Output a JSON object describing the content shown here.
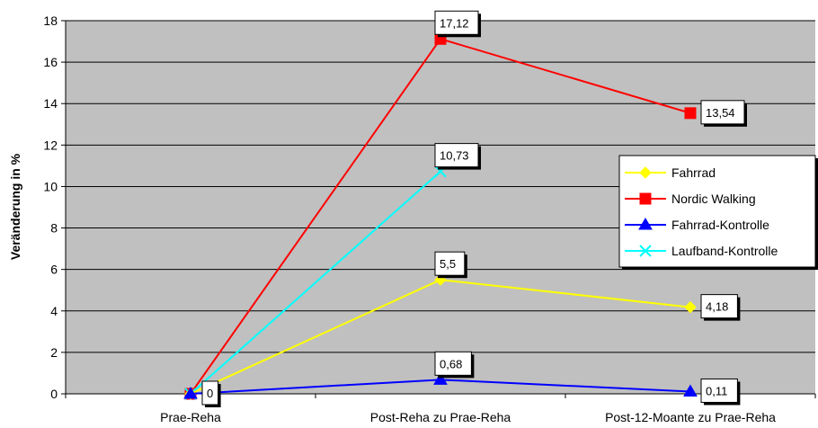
{
  "chart_data": {
    "type": "line",
    "title": "",
    "xlabel": "",
    "ylabel": "Veränderung in %",
    "ylim": [
      0,
      18
    ],
    "yticks": [
      0,
      2,
      4,
      6,
      8,
      10,
      12,
      14,
      16,
      18
    ],
    "categories": [
      "Prae-Reha",
      "Post-Reha zu Prae-Reha",
      "Post-12-Moante zu Prae-Reha"
    ],
    "grid": true,
    "legend_position": "right",
    "plot_background": "#c0c0c0",
    "series": [
      {
        "name": "Fahrrad",
        "color": "#ffff00",
        "marker": "diamond",
        "values": [
          0,
          5.5,
          4.18
        ],
        "labels": [
          "",
          "5,5",
          "4,18"
        ]
      },
      {
        "name": "Nordic Walking",
        "color": "#ff0000",
        "marker": "square",
        "values": [
          0,
          17.12,
          13.54
        ],
        "labels": [
          "",
          "17,12",
          "13,54"
        ]
      },
      {
        "name": "Fahrrad-Kontrolle",
        "color": "#0000ff",
        "marker": "triangle",
        "values": [
          0,
          0.68,
          0.11
        ],
        "labels": [
          "0",
          "0,68",
          "0,11"
        ]
      },
      {
        "name": "Laufband-Kontrolle",
        "color": "#00ffff",
        "marker": "x",
        "values": [
          0,
          10.73,
          null
        ],
        "labels": [
          "",
          "10,73",
          ""
        ]
      }
    ]
  }
}
